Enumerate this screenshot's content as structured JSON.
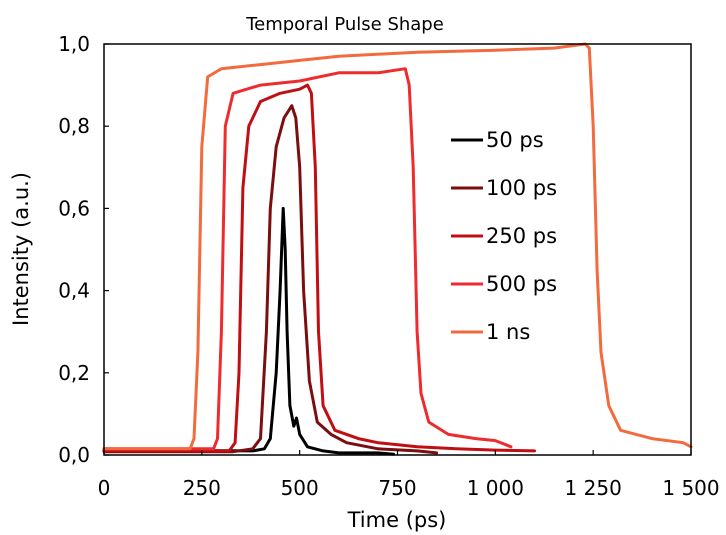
{
  "chart_data": {
    "type": "line",
    "title": "Temporal Pulse Shape",
    "xlabel": "Time (ps)",
    "ylabel": "Intensity (a.u.)",
    "xlim": [
      0,
      1500
    ],
    "ylim": [
      0,
      1.0
    ],
    "x_ticks": [
      {
        "value": 0,
        "label": "0"
      },
      {
        "value": 250,
        "label": "250"
      },
      {
        "value": 500,
        "label": "500"
      },
      {
        "value": 750,
        "label": "750"
      },
      {
        "value": 1000,
        "label": "1 000"
      },
      {
        "value": 1250,
        "label": "1 250"
      },
      {
        "value": 1500,
        "label": "1 500"
      }
    ],
    "y_ticks": [
      {
        "value": 0,
        "label": "0,0"
      },
      {
        "value": 0.2,
        "label": "0,2"
      },
      {
        "value": 0.4,
        "label": "0,4"
      },
      {
        "value": 0.6,
        "label": "0,6"
      },
      {
        "value": 0.8,
        "label": "0,8"
      },
      {
        "value": 1.0,
        "label": "1,0"
      }
    ],
    "grid": false,
    "legend_position": "right",
    "series": [
      {
        "name": "50 ps",
        "color": "#000000",
        "points": [
          [
            0,
            0.012
          ],
          [
            380,
            0.01
          ],
          [
            410,
            0.015
          ],
          [
            425,
            0.04
          ],
          [
            440,
            0.2
          ],
          [
            450,
            0.4
          ],
          [
            458,
            0.6
          ],
          [
            463,
            0.5
          ],
          [
            468,
            0.3
          ],
          [
            475,
            0.12
          ],
          [
            485,
            0.07
          ],
          [
            492,
            0.09
          ],
          [
            500,
            0.05
          ],
          [
            520,
            0.02
          ],
          [
            560,
            0.01
          ],
          [
            600,
            0.005
          ],
          [
            700,
            0.005
          ],
          [
            740,
            0.002
          ]
        ]
      },
      {
        "name": "100 ps",
        "color": "#7a0e10",
        "points": [
          [
            0,
            0.008
          ],
          [
            330,
            0.008
          ],
          [
            380,
            0.015
          ],
          [
            400,
            0.04
          ],
          [
            415,
            0.3
          ],
          [
            425,
            0.6
          ],
          [
            440,
            0.75
          ],
          [
            460,
            0.82
          ],
          [
            480,
            0.85
          ],
          [
            490,
            0.82
          ],
          [
            500,
            0.7
          ],
          [
            510,
            0.4
          ],
          [
            525,
            0.18
          ],
          [
            545,
            0.08
          ],
          [
            580,
            0.05
          ],
          [
            620,
            0.03
          ],
          [
            700,
            0.015
          ],
          [
            800,
            0.01
          ],
          [
            850,
            0.005
          ]
        ]
      },
      {
        "name": "250 ps",
        "color": "#c00e13",
        "points": [
          [
            0,
            0.01
          ],
          [
            320,
            0.01
          ],
          [
            335,
            0.03
          ],
          [
            345,
            0.2
          ],
          [
            355,
            0.65
          ],
          [
            370,
            0.8
          ],
          [
            400,
            0.86
          ],
          [
            450,
            0.88
          ],
          [
            500,
            0.89
          ],
          [
            520,
            0.9
          ],
          [
            530,
            0.88
          ],
          [
            540,
            0.7
          ],
          [
            548,
            0.3
          ],
          [
            560,
            0.12
          ],
          [
            590,
            0.06
          ],
          [
            650,
            0.04
          ],
          [
            700,
            0.03
          ],
          [
            800,
            0.02
          ],
          [
            900,
            0.015
          ],
          [
            1000,
            0.012
          ],
          [
            1100,
            0.01
          ]
        ]
      },
      {
        "name": "500 ps",
        "color": "#ee2b2f",
        "points": [
          [
            0,
            0.015
          ],
          [
            280,
            0.015
          ],
          [
            290,
            0.04
          ],
          [
            300,
            0.3
          ],
          [
            310,
            0.8
          ],
          [
            330,
            0.88
          ],
          [
            400,
            0.9
          ],
          [
            500,
            0.91
          ],
          [
            600,
            0.93
          ],
          [
            700,
            0.93
          ],
          [
            770,
            0.94
          ],
          [
            780,
            0.9
          ],
          [
            790,
            0.7
          ],
          [
            800,
            0.3
          ],
          [
            810,
            0.15
          ],
          [
            830,
            0.08
          ],
          [
            880,
            0.05
          ],
          [
            950,
            0.04
          ],
          [
            1000,
            0.035
          ],
          [
            1040,
            0.02
          ]
        ]
      },
      {
        "name": "1 ns",
        "color": "#f26a3e",
        "points": [
          [
            0,
            0.015
          ],
          [
            220,
            0.015
          ],
          [
            230,
            0.04
          ],
          [
            240,
            0.25
          ],
          [
            250,
            0.75
          ],
          [
            265,
            0.92
          ],
          [
            300,
            0.94
          ],
          [
            400,
            0.95
          ],
          [
            500,
            0.96
          ],
          [
            600,
            0.97
          ],
          [
            800,
            0.98
          ],
          [
            1000,
            0.985
          ],
          [
            1150,
            0.99
          ],
          [
            1230,
            1.0
          ],
          [
            1240,
            0.99
          ],
          [
            1250,
            0.8
          ],
          [
            1260,
            0.45
          ],
          [
            1270,
            0.25
          ],
          [
            1290,
            0.12
          ],
          [
            1320,
            0.06
          ],
          [
            1400,
            0.04
          ],
          [
            1480,
            0.03
          ],
          [
            1500,
            0.02
          ]
        ]
      }
    ]
  }
}
